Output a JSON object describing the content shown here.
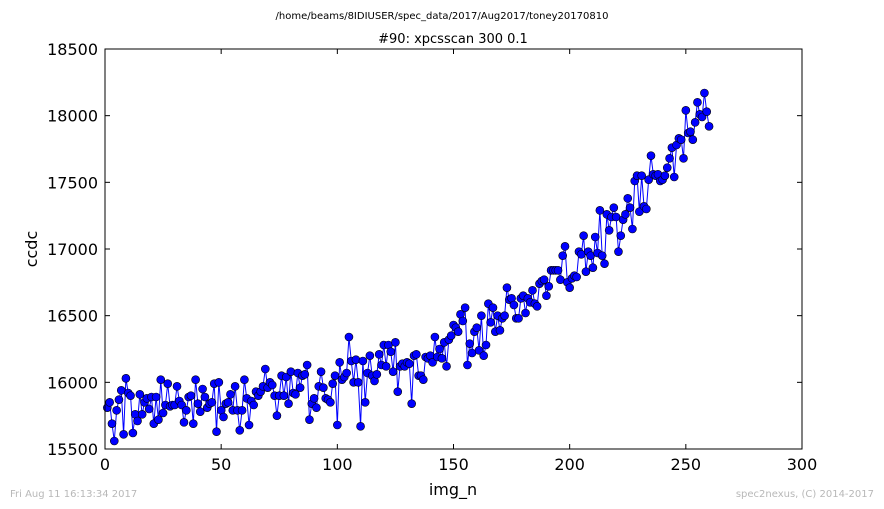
{
  "header": {
    "path": "/home/beams/8IDIUSER/spec_data/2017/Aug2017/toney20170810"
  },
  "footer": {
    "timestamp": "Fri Aug 11 16:13:34 2017",
    "credit": "spec2nexus, (C) 2014-2017"
  },
  "colors": {
    "series": "#0000ff",
    "axis": "#000000",
    "background": "#ffffff"
  },
  "chart_data": {
    "type": "line",
    "title": "#90: xpcsscan 300 0.1",
    "xlabel": "img_n",
    "ylabel": "ccdc",
    "xlim": [
      0,
      300
    ],
    "ylim": [
      15500,
      18500
    ],
    "xticks": [
      0,
      50,
      100,
      150,
      200,
      250,
      300
    ],
    "yticks": [
      15500,
      16000,
      16500,
      17000,
      17500,
      18000,
      18500
    ],
    "grid": false,
    "legend": "none",
    "markers": true,
    "x_start": 1,
    "x_step": 1,
    "series": [
      {
        "values": [
          15810,
          15850,
          15690,
          15560,
          15790,
          15870,
          15940,
          15610,
          16030,
          15920,
          15900,
          15620,
          15760,
          15710,
          15910,
          15760,
          15850,
          15880,
          15800,
          15890,
          15690,
          15890,
          15720,
          16020,
          15770,
          15830,
          15990,
          15820,
          15830,
          15830,
          15970,
          15860,
          15830,
          15700,
          15790,
          15890,
          15900,
          15690,
          16020,
          15840,
          15780,
          15950,
          15890,
          15810,
          15840,
          15850,
          15990,
          15630,
          16000,
          15790,
          15740,
          15840,
          15850,
          15910,
          15790,
          15970,
          15790,
          15640,
          15790,
          16020,
          15880,
          15680,
          15860,
          15830,
          15930,
          15900,
          15930,
          15970,
          16100,
          15960,
          16000,
          15980,
          15900,
          15750,
          15900,
          16050,
          15900,
          16040,
          15840,
          16080,
          15920,
          15910,
          16070,
          15960,
          16050,
          16060,
          16130,
          15720,
          15840,
          15880,
          15810,
          15970,
          16080,
          15960,
          15880,
          15870,
          15850,
          15990,
          16050,
          15680,
          16150,
          16020,
          16040,
          16070,
          16340,
          16160,
          16000,
          16170,
          16000,
          15670,
          16160,
          15850,
          16070,
          16200,
          16050,
          16010,
          16060,
          16210,
          16130,
          16280,
          16120,
          16280,
          16230,
          16080,
          16300,
          15930,
          16120,
          16140,
          16120,
          16150,
          16140,
          15840,
          16200,
          16210,
          16050,
          16050,
          16020,
          16190,
          16180,
          16200,
          16150,
          16340,
          16190,
          16250,
          16180,
          16300,
          16120,
          16320,
          16350,
          16430,
          16410,
          16380,
          16510,
          16460,
          16560,
          16130,
          16290,
          16220,
          16380,
          16410,
          16240,
          16500,
          16200,
          16280,
          16590,
          16450,
          16560,
          16380,
          16500,
          16390,
          16480,
          16500,
          16710,
          16620,
          16630,
          16580,
          16480,
          16480,
          16630,
          16650,
          16520,
          16630,
          16600,
          16690,
          16590,
          16570,
          16740,
          16760,
          16770,
          16650,
          16720,
          16840,
          16840,
          16840,
          16840,
          16770,
          16950,
          17020,
          16750,
          16710,
          16780,
          16800,
          16790,
          16980,
          16960,
          17100,
          16830,
          16980,
          16950,
          16860,
          17090,
          16970,
          17290,
          16950,
          16890,
          17260,
          17140,
          17240,
          17310,
          17240,
          16980,
          17100,
          17220,
          17260,
          17380,
          17310,
          17150,
          17510,
          17550,
          17280,
          17550,
          17320,
          17300,
          17520,
          17700,
          17560,
          17550,
          17560,
          17510,
          17520,
          17550,
          17610,
          17680,
          17760,
          17540,
          17780,
          17830,
          17820,
          17680,
          18040,
          17870,
          17880,
          17820,
          17950,
          18100,
          18010,
          17990,
          18170,
          18030,
          17920
        ]
      }
    ]
  }
}
